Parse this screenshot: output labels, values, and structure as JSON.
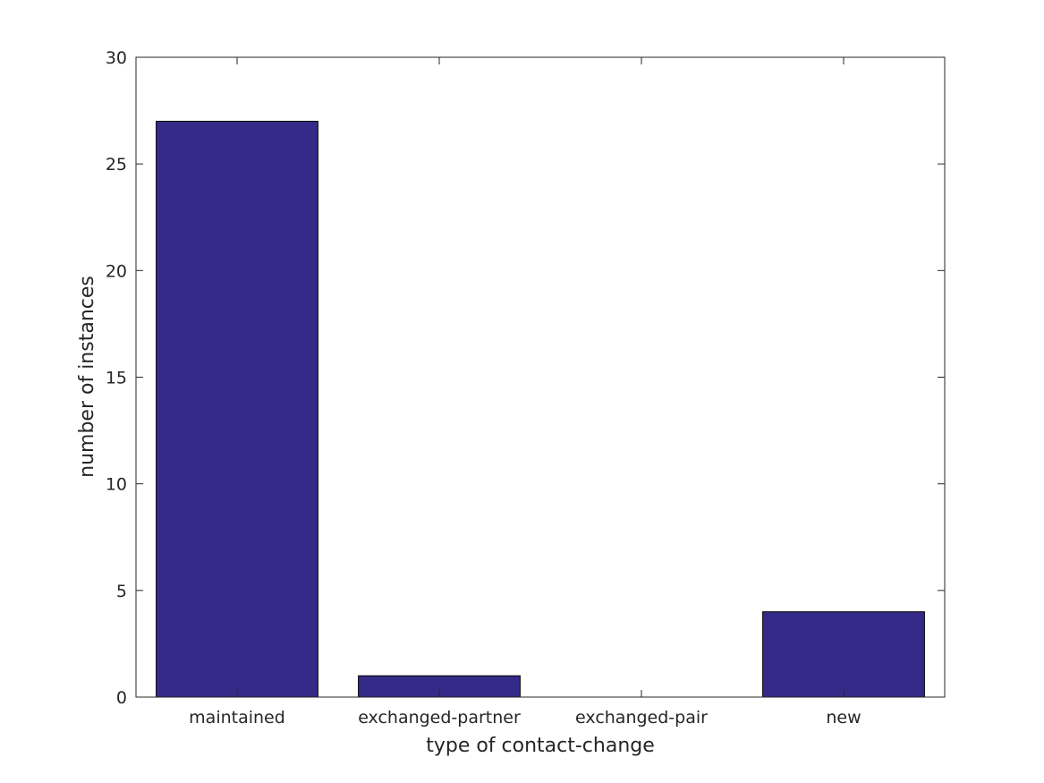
{
  "chart_data": {
    "type": "bar",
    "title": "",
    "xlabel": "type of contact-change",
    "ylabel": "number of instances",
    "categories": [
      "maintained",
      "exchanged-partner",
      "exchanged-pair",
      "new"
    ],
    "values": [
      27,
      1,
      0,
      4
    ],
    "ylim": [
      0,
      30
    ],
    "yticks": [
      0,
      5,
      10,
      15,
      20,
      25,
      30
    ],
    "grid": false,
    "colors": {
      "bar": "#352a87",
      "bar_edge": "#000000",
      "axis": "#262626"
    }
  }
}
